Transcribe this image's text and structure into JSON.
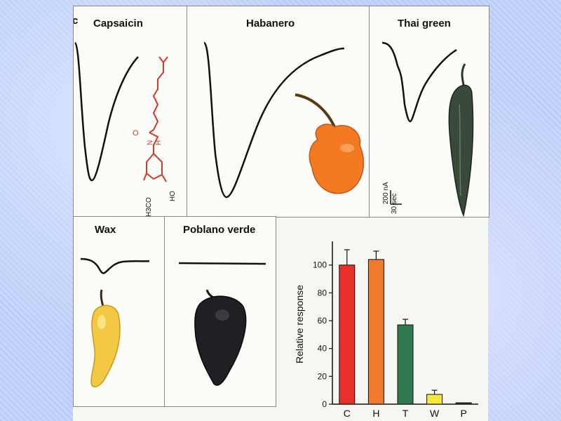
{
  "panels": {
    "capsaicin": {
      "title": "Capsaicin"
    },
    "habanero": {
      "title": "Habanero"
    },
    "thai": {
      "title": "Thai green"
    },
    "wax": {
      "title": "Wax"
    },
    "poblano": {
      "title": "Poblano verde"
    }
  },
  "panel_letter": "c",
  "structure": {
    "ho": "HO",
    "h3co": "H3CO",
    "n": "N",
    "h": "H",
    "o": "O"
  },
  "scale_bar": {
    "current": "200 nA",
    "time": "30 sec"
  },
  "colors": {
    "capsaicin": "#e8302a",
    "habanero": "#f07a2e",
    "thai_green": "#2e7a4e",
    "wax": "#f5e83a",
    "poblano": "#333333",
    "structure": "#d23a2a"
  },
  "chart_data": {
    "type": "bar",
    "categories": [
      "C",
      "H",
      "T",
      "W",
      "P"
    ],
    "values": [
      100,
      104,
      57,
      7,
      1
    ],
    "errors": [
      11,
      6,
      4,
      3,
      0
    ],
    "colors": [
      "#e8302a",
      "#f07a2e",
      "#2e7a4e",
      "#f5e83a",
      "#333333"
    ],
    "ylabel": "Relative response",
    "xlabel": "",
    "yticks": [
      0,
      20,
      40,
      60,
      80,
      100
    ],
    "ylim": [
      0,
      115
    ]
  }
}
